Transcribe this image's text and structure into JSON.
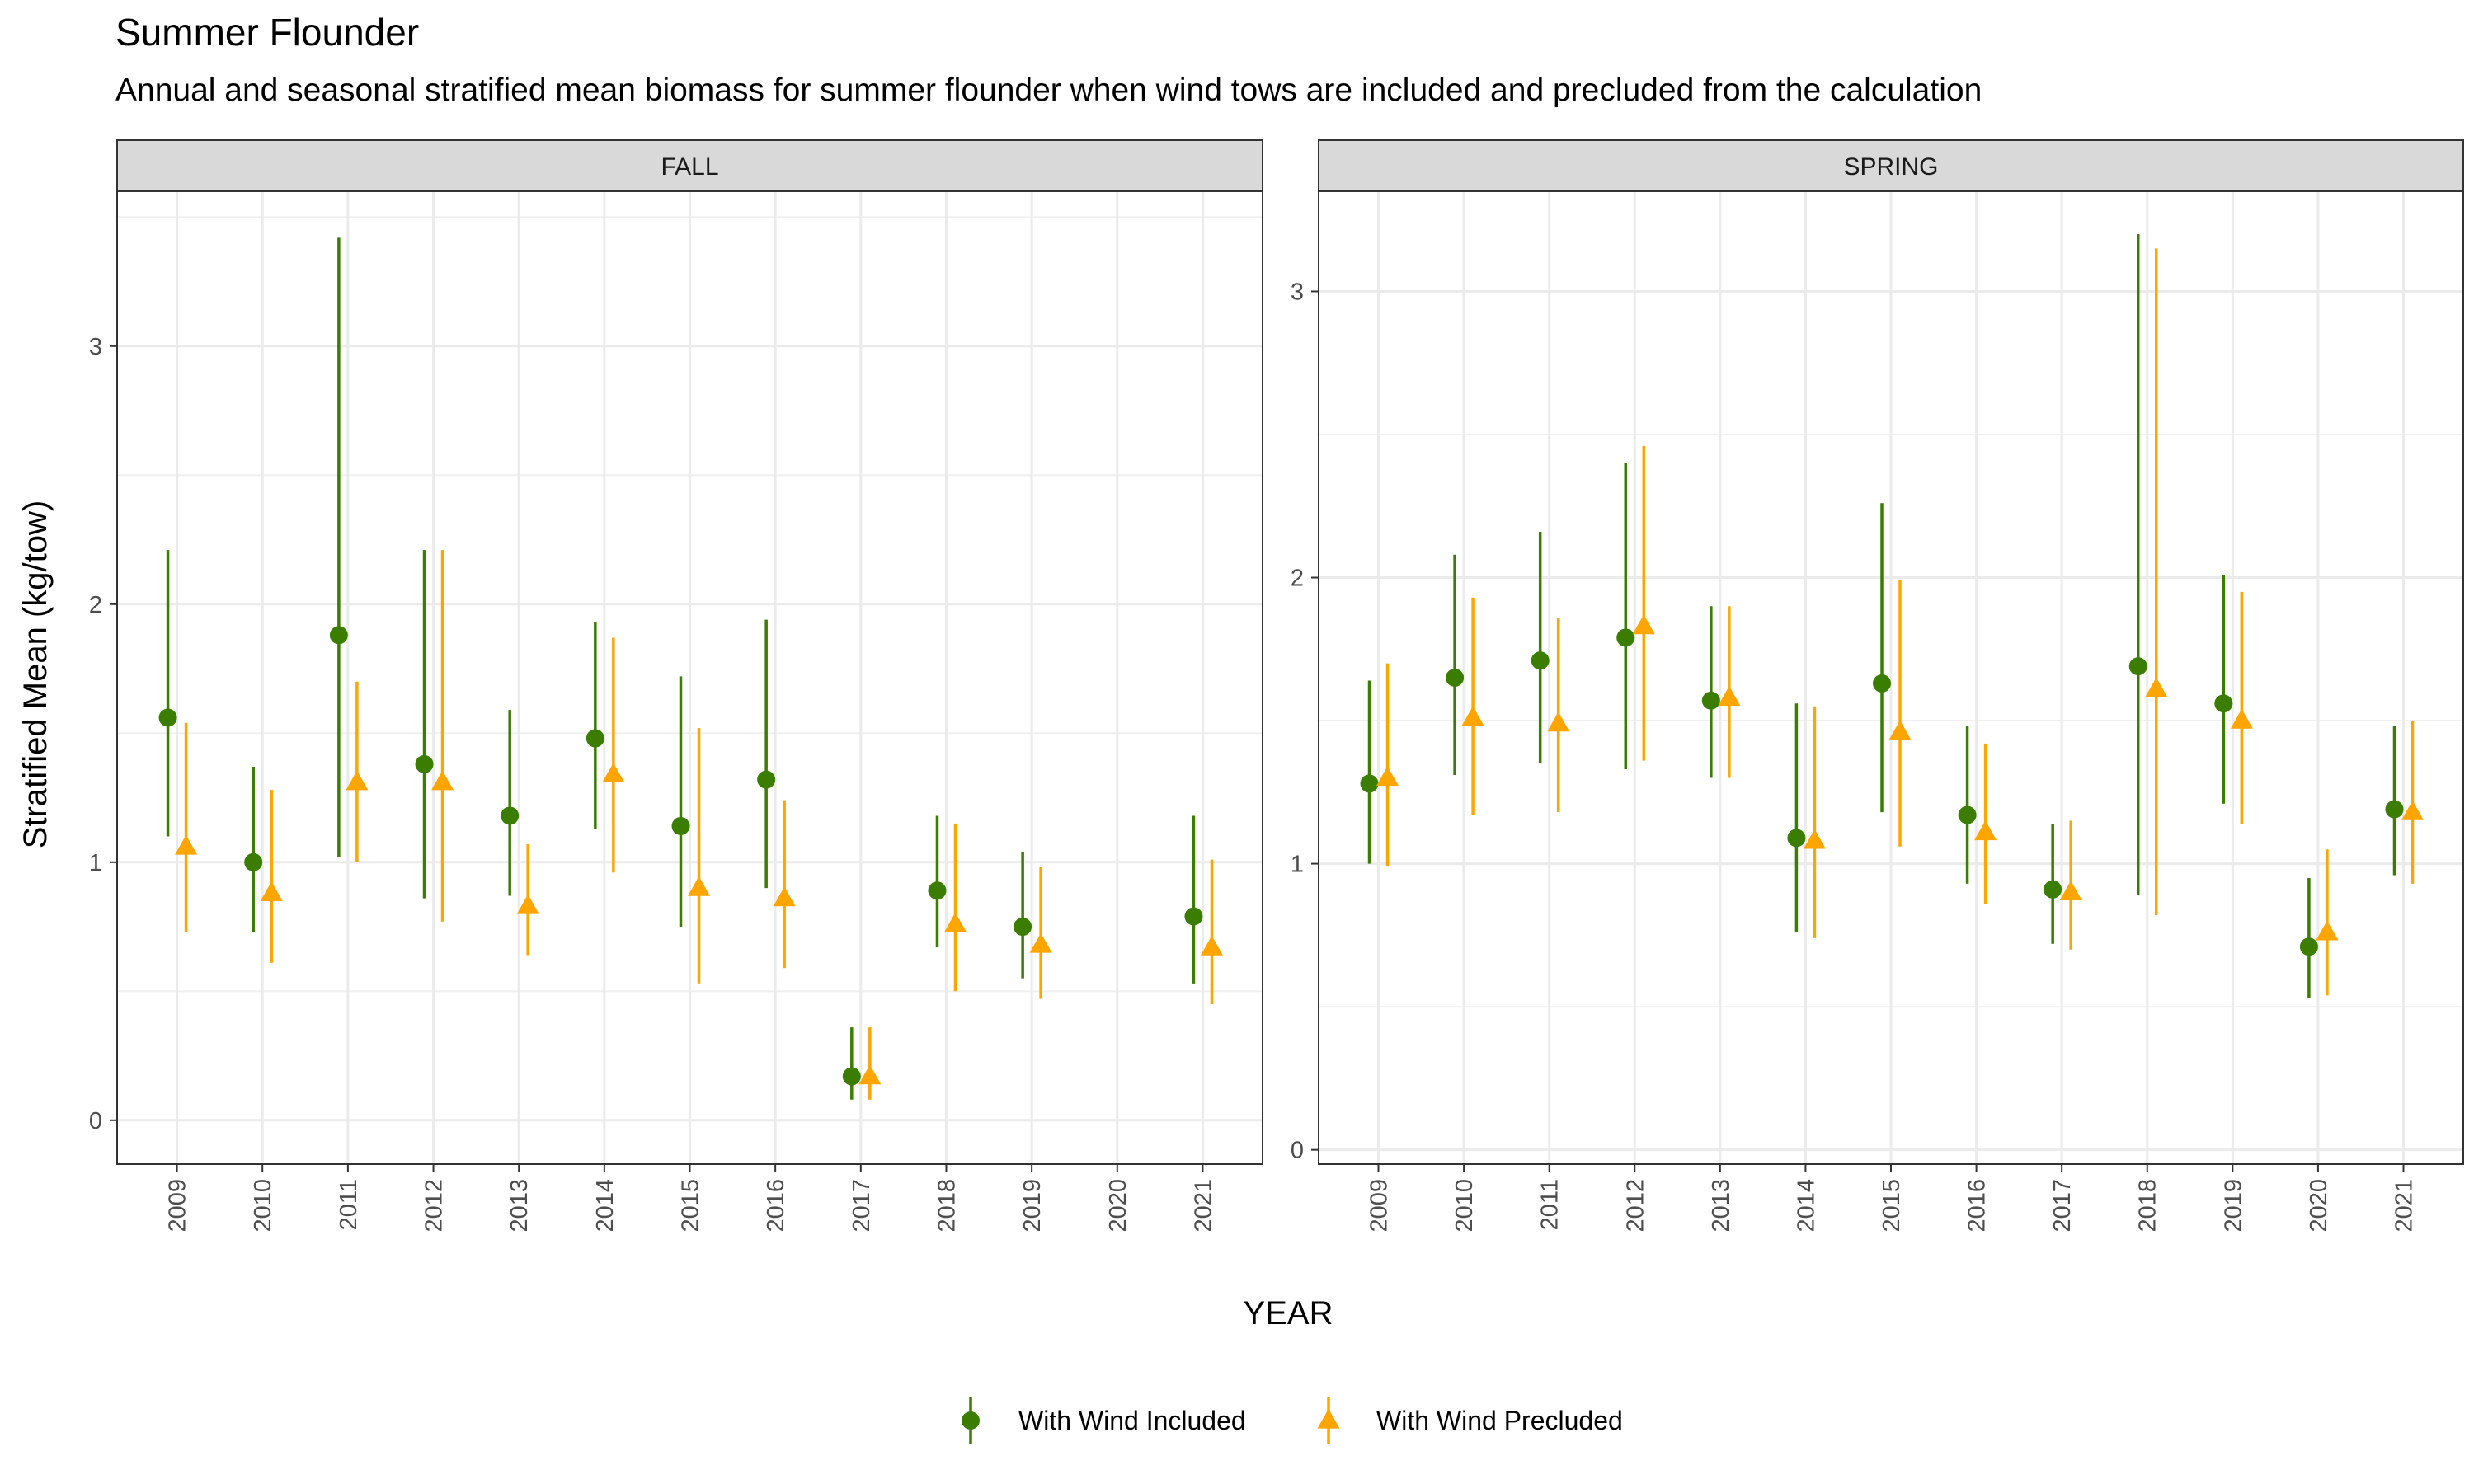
{
  "colors": {
    "included": "#3a7d00",
    "precluded": "#ffa500"
  },
  "chart_data": {
    "type": "scatter",
    "title": "Summer Flounder",
    "subtitle": "Annual and seasonal stratified mean biomass for summer flounder when wind tows are included and precluded from the calculation",
    "xlabel": "YEAR",
    "ylabel": "Stratified Mean (kg/tow)",
    "grid": true,
    "legend_position": "bottom",
    "legend": [
      {
        "label": "With Wind Included",
        "marker": "circle",
        "color": "#3a7d00"
      },
      {
        "label": "With Wind Precluded",
        "marker": "triangle",
        "color": "#ffa500"
      }
    ],
    "categories": [
      "2009",
      "2010",
      "2011",
      "2012",
      "2013",
      "2014",
      "2015",
      "2016",
      "2017",
      "2018",
      "2019",
      "2020",
      "2021"
    ],
    "panels": [
      {
        "label": "FALL",
        "ylim": [
          -0.17,
          3.6
        ],
        "yticks": [
          0,
          1,
          2,
          3
        ],
        "series": [
          {
            "name": "With Wind Included",
            "points": [
              {
                "year": "2009",
                "mean": 1.56,
                "lower": 1.1,
                "upper": 2.21
              },
              {
                "year": "2010",
                "mean": 1.0,
                "lower": 0.73,
                "upper": 1.37
              },
              {
                "year": "2011",
                "mean": 1.88,
                "lower": 1.02,
                "upper": 3.42
              },
              {
                "year": "2012",
                "mean": 1.38,
                "lower": 0.86,
                "upper": 2.21
              },
              {
                "year": "2013",
                "mean": 1.18,
                "lower": 0.87,
                "upper": 1.59
              },
              {
                "year": "2014",
                "mean": 1.48,
                "lower": 1.13,
                "upper": 1.93
              },
              {
                "year": "2015",
                "mean": 1.14,
                "lower": 0.75,
                "upper": 1.72
              },
              {
                "year": "2016",
                "mean": 1.32,
                "lower": 0.9,
                "upper": 1.94
              },
              {
                "year": "2017",
                "mean": 0.17,
                "lower": 0.08,
                "upper": 0.36
              },
              {
                "year": "2018",
                "mean": 0.89,
                "lower": 0.67,
                "upper": 1.18
              },
              {
                "year": "2019",
                "mean": 0.75,
                "lower": 0.55,
                "upper": 1.04
              },
              {
                "year": "2021",
                "mean": 0.79,
                "lower": 0.53,
                "upper": 1.18
              }
            ]
          },
          {
            "name": "With Wind Precluded",
            "points": [
              {
                "year": "2009",
                "mean": 1.06,
                "lower": 0.73,
                "upper": 1.54
              },
              {
                "year": "2010",
                "mean": 0.88,
                "lower": 0.61,
                "upper": 1.28
              },
              {
                "year": "2011",
                "mean": 1.31,
                "lower": 1.0,
                "upper": 1.7
              },
              {
                "year": "2012",
                "mean": 1.31,
                "lower": 0.77,
                "upper": 2.21
              },
              {
                "year": "2013",
                "mean": 0.83,
                "lower": 0.64,
                "upper": 1.07
              },
              {
                "year": "2014",
                "mean": 1.34,
                "lower": 0.96,
                "upper": 1.87
              },
              {
                "year": "2015",
                "mean": 0.9,
                "lower": 0.53,
                "upper": 1.52
              },
              {
                "year": "2016",
                "mean": 0.86,
                "lower": 0.59,
                "upper": 1.24
              },
              {
                "year": "2017",
                "mean": 0.17,
                "lower": 0.08,
                "upper": 0.36
              },
              {
                "year": "2018",
                "mean": 0.76,
                "lower": 0.5,
                "upper": 1.15
              },
              {
                "year": "2019",
                "mean": 0.68,
                "lower": 0.47,
                "upper": 0.98
              },
              {
                "year": "2021",
                "mean": 0.67,
                "lower": 0.45,
                "upper": 1.01
              }
            ]
          }
        ]
      },
      {
        "label": "SPRING",
        "ylim": [
          -0.05,
          3.35
        ],
        "yticks": [
          0,
          1,
          2,
          3
        ],
        "series": [
          {
            "name": "With Wind Included",
            "points": [
              {
                "year": "2009",
                "mean": 1.28,
                "lower": 1.0,
                "upper": 1.64
              },
              {
                "year": "2010",
                "mean": 1.65,
                "lower": 1.31,
                "upper": 2.08
              },
              {
                "year": "2011",
                "mean": 1.71,
                "lower": 1.35,
                "upper": 2.16
              },
              {
                "year": "2012",
                "mean": 1.79,
                "lower": 1.33,
                "upper": 2.4
              },
              {
                "year": "2013",
                "mean": 1.57,
                "lower": 1.3,
                "upper": 1.9
              },
              {
                "year": "2014",
                "mean": 1.09,
                "lower": 0.76,
                "upper": 1.56
              },
              {
                "year": "2015",
                "mean": 1.63,
                "lower": 1.18,
                "upper": 2.26
              },
              {
                "year": "2016",
                "mean": 1.17,
                "lower": 0.93,
                "upper": 1.48
              },
              {
                "year": "2017",
                "mean": 0.91,
                "lower": 0.72,
                "upper": 1.14
              },
              {
                "year": "2018",
                "mean": 1.69,
                "lower": 0.89,
                "upper": 3.2
              },
              {
                "year": "2019",
                "mean": 1.56,
                "lower": 1.21,
                "upper": 2.01
              },
              {
                "year": "2020",
                "mean": 0.71,
                "lower": 0.53,
                "upper": 0.95
              },
              {
                "year": "2021",
                "mean": 1.19,
                "lower": 0.96,
                "upper": 1.48
              }
            ]
          },
          {
            "name": "With Wind Precluded",
            "points": [
              {
                "year": "2009",
                "mean": 1.3,
                "lower": 0.99,
                "upper": 1.7
              },
              {
                "year": "2010",
                "mean": 1.51,
                "lower": 1.17,
                "upper": 1.93
              },
              {
                "year": "2011",
                "mean": 1.49,
                "lower": 1.18,
                "upper": 1.86
              },
              {
                "year": "2012",
                "mean": 1.83,
                "lower": 1.36,
                "upper": 2.46
              },
              {
                "year": "2013",
                "mean": 1.58,
                "lower": 1.3,
                "upper": 1.9
              },
              {
                "year": "2014",
                "mean": 1.08,
                "lower": 0.74,
                "upper": 1.55
              },
              {
                "year": "2015",
                "mean": 1.46,
                "lower": 1.06,
                "upper": 1.99
              },
              {
                "year": "2016",
                "mean": 1.11,
                "lower": 0.86,
                "upper": 1.42
              },
              {
                "year": "2017",
                "mean": 0.9,
                "lower": 0.7,
                "upper": 1.15
              },
              {
                "year": "2018",
                "mean": 1.61,
                "lower": 0.82,
                "upper": 3.15
              },
              {
                "year": "2019",
                "mean": 1.5,
                "lower": 1.14,
                "upper": 1.95
              },
              {
                "year": "2020",
                "mean": 0.76,
                "lower": 0.54,
                "upper": 1.05
              },
              {
                "year": "2021",
                "mean": 1.18,
                "lower": 0.93,
                "upper": 1.5
              }
            ]
          }
        ]
      }
    ]
  }
}
